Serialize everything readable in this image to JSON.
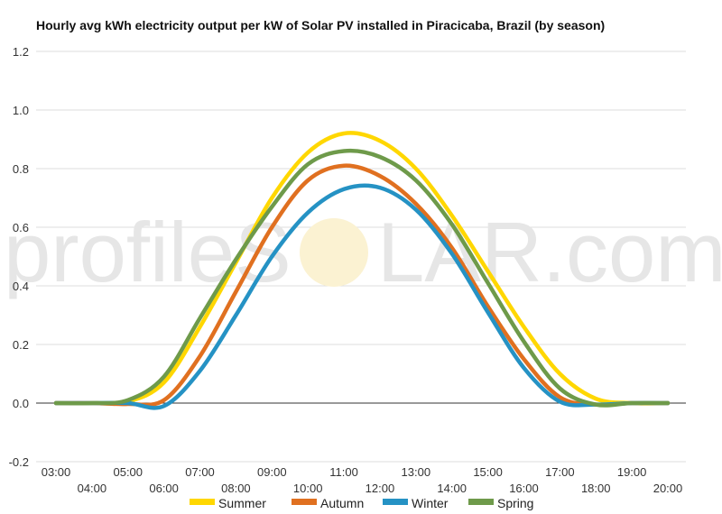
{
  "watermark": {
    "left_text": "profileS",
    "sun_letter": "O",
    "right_text": "LAR.com"
  },
  "chart_data": {
    "type": "line",
    "title": "Hourly avg kWh electricity output per kW of Solar PV installed in Piracicaba, Brazil (by season)",
    "xlabel": "",
    "ylabel": "",
    "ylim": [
      -0.2,
      1.2
    ],
    "yticks": [
      "-0.2",
      "0.0",
      "0.2",
      "0.4",
      "0.6",
      "0.8",
      "1.0",
      "1.2"
    ],
    "x": [
      "03:00",
      "04:00",
      "05:00",
      "06:00",
      "07:00",
      "08:00",
      "09:00",
      "10:00",
      "11:00",
      "12:00",
      "13:00",
      "14:00",
      "15:00",
      "16:00",
      "17:00",
      "18:00",
      "19:00",
      "20:00"
    ],
    "grid": true,
    "legend_position": "bottom",
    "series": [
      {
        "name": "Summer",
        "color": "#FFD700",
        "values": [
          0,
          0,
          0.005,
          0.07,
          0.26,
          0.48,
          0.7,
          0.855,
          0.92,
          0.895,
          0.8,
          0.64,
          0.45,
          0.26,
          0.1,
          0.015,
          0,
          0
        ]
      },
      {
        "name": "Autumn",
        "color": "#E07020",
        "values": [
          0,
          0,
          -0.003,
          0.01,
          0.16,
          0.38,
          0.6,
          0.76,
          0.81,
          0.775,
          0.68,
          0.53,
          0.33,
          0.15,
          0.02,
          -0.005,
          0,
          0
        ]
      },
      {
        "name": "Winter",
        "color": "#2592C4",
        "values": [
          0,
          0,
          0,
          -0.01,
          0.11,
          0.3,
          0.5,
          0.65,
          0.73,
          0.735,
          0.66,
          0.51,
          0.31,
          0.12,
          0.005,
          -0.005,
          0,
          0
        ]
      },
      {
        "name": "Spring",
        "color": "#6E9A4A",
        "values": [
          0,
          0,
          0.01,
          0.09,
          0.29,
          0.49,
          0.67,
          0.815,
          0.86,
          0.84,
          0.76,
          0.61,
          0.41,
          0.21,
          0.05,
          -0.005,
          0,
          0
        ]
      }
    ]
  }
}
